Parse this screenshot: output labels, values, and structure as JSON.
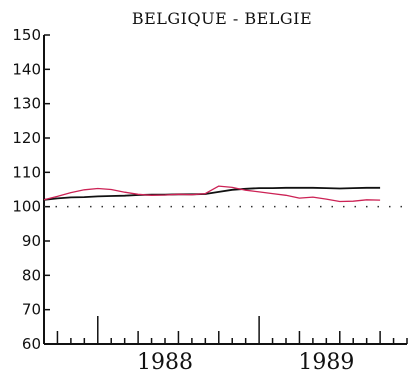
{
  "chart_data": {
    "type": "line",
    "title": "BELGIQUE - BELGIE",
    "xlabel": "",
    "ylabel": "",
    "ylim": [
      60,
      150
    ],
    "yticks": [
      60,
      70,
      80,
      90,
      100,
      110,
      120,
      130,
      140,
      150
    ],
    "x_start": "1987-09",
    "x_end": "1989-12",
    "year_labels": [
      {
        "label": "1988",
        "x": "1988-06"
      },
      {
        "label": "1989",
        "x": "1989-06"
      }
    ],
    "reference_line": {
      "y": 100,
      "style": "dotted"
    },
    "grid": false,
    "series": [
      {
        "color": "#111111",
        "x": [
          "1987-09",
          "1987-10",
          "1987-11",
          "1987-12",
          "1988-01",
          "1988-02",
          "1988-03",
          "1988-04",
          "1988-05",
          "1988-06",
          "1988-07",
          "1988-08",
          "1988-09",
          "1988-10",
          "1988-11",
          "1988-12",
          "1989-01",
          "1989-02",
          "1989-03",
          "1989-04",
          "1989-05",
          "1989-06",
          "1989-07",
          "1989-08",
          "1989-09",
          "1989-10"
        ],
        "values": [
          102.0,
          102.4,
          102.7,
          102.8,
          103.0,
          103.1,
          103.2,
          103.4,
          103.5,
          103.5,
          103.6,
          103.6,
          103.7,
          104.3,
          104.9,
          105.2,
          105.4,
          105.4,
          105.5,
          105.5,
          105.5,
          105.4,
          105.3,
          105.4,
          105.5,
          105.5
        ]
      },
      {
        "color": "#cc2255",
        "x": [
          "1987-09",
          "1987-10",
          "1987-11",
          "1987-12",
          "1988-01",
          "1988-02",
          "1988-03",
          "1988-04",
          "1988-05",
          "1988-06",
          "1988-07",
          "1988-08",
          "1988-09",
          "1988-10",
          "1988-11",
          "1988-12",
          "1989-01",
          "1989-02",
          "1989-03",
          "1989-04",
          "1989-05",
          "1989-06",
          "1989-07",
          "1989-08",
          "1989-09",
          "1989-10"
        ],
        "values": [
          102.0,
          103.0,
          104.1,
          104.9,
          105.3,
          105.0,
          104.2,
          103.6,
          103.3,
          103.4,
          103.6,
          103.5,
          103.8,
          106.0,
          105.6,
          104.8,
          104.3,
          103.8,
          103.3,
          102.5,
          102.8,
          102.2,
          101.5,
          101.6,
          102.0,
          101.9
        ]
      }
    ]
  }
}
